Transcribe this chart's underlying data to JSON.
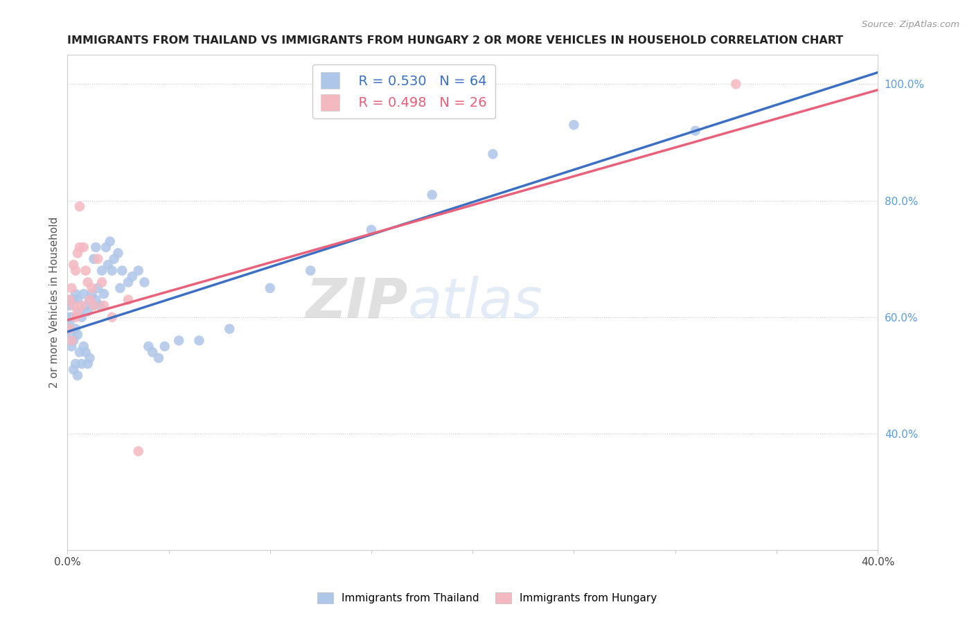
{
  "title": "IMMIGRANTS FROM THAILAND VS IMMIGRANTS FROM HUNGARY 2 OR MORE VEHICLES IN HOUSEHOLD CORRELATION CHART",
  "source": "Source: ZipAtlas.com",
  "ylabel": "2 or more Vehicles in Household",
  "xlim": [
    0.0,
    0.4
  ],
  "ylim": [
    0.2,
    1.05
  ],
  "background_color": "#ffffff",
  "grid_color": "#cccccc",
  "watermark_zip": "ZIP",
  "watermark_atlas": "atlas",
  "thailand_color": "#aec6e8",
  "thailand_line_color": "#3b6fc4",
  "hungary_color": "#f4b8c1",
  "hungary_line_color": "#e8607a",
  "legend_thailand_R": "0.530",
  "legend_thailand_N": "64",
  "legend_hungary_R": "0.498",
  "legend_hungary_N": "26",
  "th_x": [
    0.001,
    0.001,
    0.001,
    0.001,
    0.002,
    0.002,
    0.002,
    0.002,
    0.003,
    0.003,
    0.003,
    0.004,
    0.004,
    0.004,
    0.005,
    0.005,
    0.005,
    0.006,
    0.006,
    0.007,
    0.007,
    0.008,
    0.008,
    0.009,
    0.009,
    0.01,
    0.01,
    0.011,
    0.011,
    0.012,
    0.013,
    0.013,
    0.014,
    0.014,
    0.015,
    0.016,
    0.017,
    0.018,
    0.019,
    0.02,
    0.021,
    0.022,
    0.023,
    0.025,
    0.026,
    0.027,
    0.03,
    0.032,
    0.035,
    0.038,
    0.04,
    0.042,
    0.045,
    0.048,
    0.055,
    0.065,
    0.08,
    0.1,
    0.12,
    0.15,
    0.18,
    0.21,
    0.25,
    0.31
  ],
  "th_y": [
    0.58,
    0.59,
    0.6,
    0.62,
    0.55,
    0.57,
    0.6,
    0.63,
    0.51,
    0.56,
    0.63,
    0.52,
    0.58,
    0.64,
    0.5,
    0.57,
    0.63,
    0.54,
    0.61,
    0.52,
    0.6,
    0.55,
    0.64,
    0.54,
    0.62,
    0.52,
    0.61,
    0.53,
    0.63,
    0.64,
    0.62,
    0.7,
    0.63,
    0.72,
    0.65,
    0.62,
    0.68,
    0.64,
    0.72,
    0.69,
    0.73,
    0.68,
    0.7,
    0.71,
    0.65,
    0.68,
    0.66,
    0.67,
    0.68,
    0.66,
    0.55,
    0.54,
    0.53,
    0.55,
    0.56,
    0.56,
    0.58,
    0.65,
    0.68,
    0.75,
    0.81,
    0.88,
    0.93,
    0.92
  ],
  "hu_x": [
    0.001,
    0.001,
    0.002,
    0.002,
    0.003,
    0.003,
    0.004,
    0.004,
    0.005,
    0.005,
    0.006,
    0.006,
    0.007,
    0.008,
    0.009,
    0.01,
    0.011,
    0.012,
    0.013,
    0.015,
    0.017,
    0.018,
    0.022,
    0.03,
    0.035,
    0.33
  ],
  "hu_y": [
    0.58,
    0.63,
    0.56,
    0.65,
    0.62,
    0.69,
    0.6,
    0.68,
    0.61,
    0.71,
    0.72,
    0.79,
    0.62,
    0.72,
    0.68,
    0.66,
    0.63,
    0.65,
    0.62,
    0.7,
    0.66,
    0.62,
    0.6,
    0.63,
    0.37,
    1.0
  ],
  "th_line_x0": 0.0,
  "th_line_x1": 0.4,
  "th_line_y0": 0.575,
  "th_line_y1": 1.02,
  "hu_line_x0": 0.0,
  "hu_line_x1": 0.4,
  "hu_line_y0": 0.595,
  "hu_line_y1": 0.99
}
